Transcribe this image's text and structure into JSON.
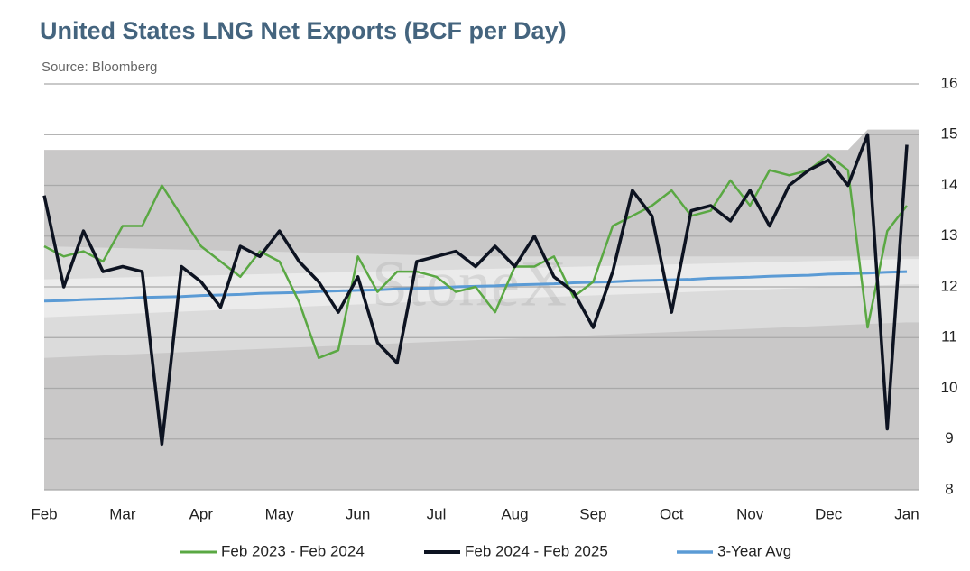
{
  "chart_data": {
    "type": "line",
    "title": "United States LNG Net Exports (BCF per Day)",
    "subtitle": "Source: Bloomberg",
    "watermark": "StoneX",
    "categories": [
      "Feb",
      null,
      null,
      null,
      "Mar",
      null,
      null,
      null,
      "Apr",
      null,
      null,
      null,
      "May",
      null,
      null,
      null,
      "Jun",
      null,
      null,
      null,
      "Jul",
      null,
      null,
      null,
      "Aug",
      null,
      null,
      null,
      "Sep",
      null,
      null,
      null,
      "Oct",
      null,
      null,
      null,
      "Nov",
      null,
      null,
      null,
      "Dec",
      null,
      null,
      null,
      "Jan"
    ],
    "ylim": [
      8,
      16
    ],
    "yticks": [
      8,
      9,
      10,
      11,
      12,
      13,
      14,
      15,
      16
    ],
    "grid": true,
    "legend": "bottom",
    "bands": [
      {
        "color": "#c9c8c8",
        "x": [
          0,
          41,
          42,
          44
        ],
        "lower": [
          8,
          8,
          8,
          8
        ],
        "upper": [
          14.7,
          14.7,
          15.1,
          15.1
        ]
      },
      {
        "color": "#dbdbdb",
        "x": [
          0,
          22,
          44
        ],
        "lower": [
          10.6,
          10.95,
          11.3
        ],
        "upper": [
          12.8,
          12.6,
          12.6
        ]
      },
      {
        "color": "#ebebeb",
        "x": [
          0,
          22,
          44
        ],
        "lower": [
          11.4,
          11.75,
          12.05
        ],
        "upper": [
          12.15,
          12.35,
          12.55
        ]
      }
    ],
    "series": [
      {
        "name": "Feb 2023 - Feb 2024",
        "color": "#5aa843",
        "width": 2.5,
        "values": [
          12.8,
          12.6,
          12.7,
          12.5,
          13.2,
          13.2,
          14.0,
          13.4,
          12.8,
          12.5,
          12.2,
          12.7,
          12.5,
          11.7,
          10.6,
          10.75,
          12.6,
          11.9,
          12.3,
          12.3,
          12.2,
          11.9,
          12.0,
          11.5,
          12.4,
          12.4,
          12.6,
          11.8,
          12.1,
          13.2,
          13.4,
          13.6,
          13.9,
          13.4,
          13.5,
          14.1,
          13.6,
          14.3,
          14.2,
          14.3,
          14.6,
          14.3,
          11.2,
          13.1,
          13.6
        ]
      },
      {
        "name": "Feb 2024 - Feb 2025",
        "color": "#0d1321",
        "width": 3.5,
        "values": [
          13.8,
          12.0,
          13.1,
          12.3,
          12.4,
          12.3,
          8.9,
          12.4,
          12.1,
          11.6,
          12.8,
          12.6,
          13.1,
          12.5,
          12.1,
          11.5,
          12.2,
          10.9,
          10.5,
          12.5,
          12.6,
          12.7,
          12.4,
          12.8,
          12.4,
          13.0,
          12.2,
          11.9,
          11.2,
          12.3,
          13.9,
          13.4,
          11.5,
          13.5,
          13.6,
          13.3,
          13.9,
          13.2,
          14.0,
          14.3,
          14.5,
          14.0,
          15.0,
          9.2,
          14.8
        ]
      },
      {
        "name": "3-Year Avg",
        "color": "#5b9bd5",
        "width": 3,
        "values": [
          11.72,
          11.73,
          11.75,
          11.76,
          11.77,
          11.79,
          11.8,
          11.81,
          11.83,
          11.84,
          11.85,
          11.87,
          11.88,
          11.89,
          11.91,
          11.92,
          11.93,
          11.94,
          11.96,
          11.97,
          11.98,
          12.0,
          12.01,
          12.02,
          12.04,
          12.05,
          12.06,
          12.08,
          12.09,
          12.1,
          12.12,
          12.13,
          12.14,
          12.15,
          12.17,
          12.18,
          12.19,
          12.21,
          12.22,
          12.23,
          12.25,
          12.26,
          12.27,
          12.29,
          12.3
        ]
      }
    ]
  }
}
